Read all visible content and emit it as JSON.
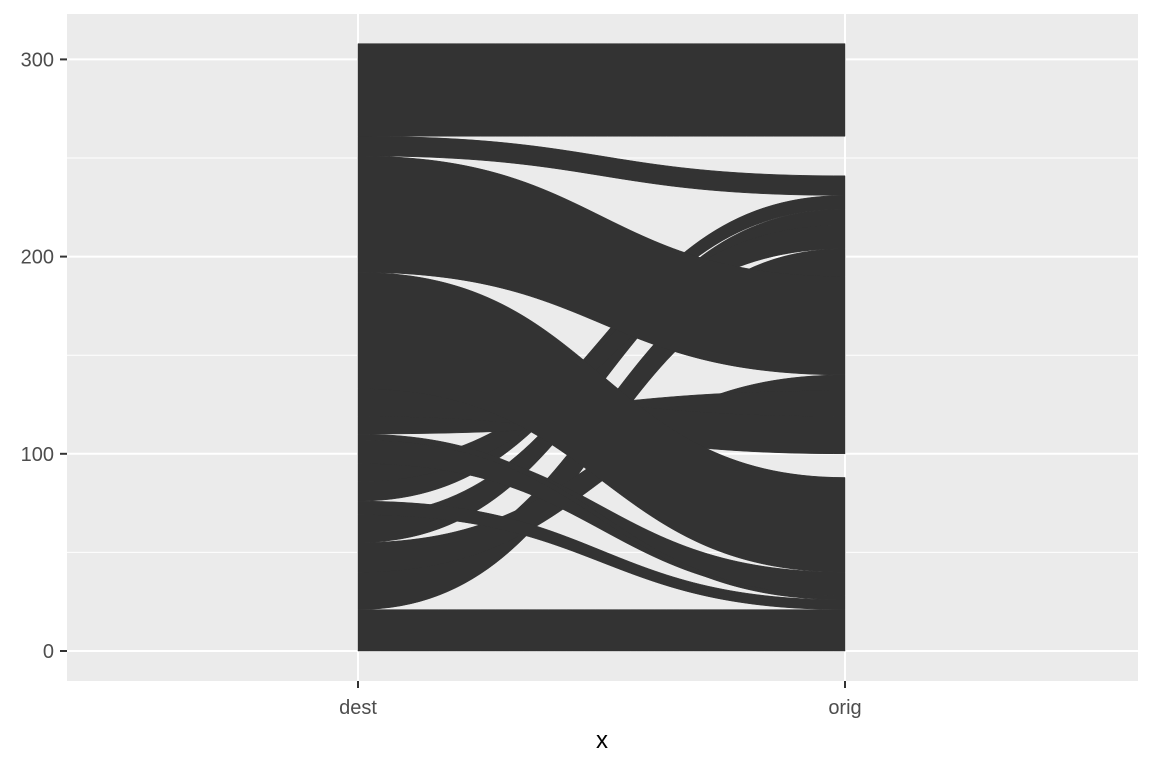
{
  "chart_data": {
    "type": "alluvial",
    "title": "",
    "xlabel": "x",
    "ylabel": "",
    "x_categories": [
      "dest",
      "orig"
    ],
    "y_ticks": [
      0,
      100,
      200,
      300
    ],
    "y_tick_labels": [
      "0",
      "100",
      "200",
      "300"
    ],
    "ylim": [
      -15,
      323
    ],
    "grid": true,
    "fill_color": "#333333",
    "panel_background": "#ebebeb",
    "stack_total": 308,
    "flows": [
      {
        "dest": [
          0,
          21
        ],
        "orig": [
          0,
          21
        ]
      },
      {
        "dest": [
          21,
          40
        ],
        "orig": [
          190,
          204
        ]
      },
      {
        "dest": [
          40,
          55
        ],
        "orig": [
          132,
          140
        ]
      },
      {
        "dest": [
          55,
          69
        ],
        "orig": [
          216,
          224
        ]
      },
      {
        "dest": [
          69,
          76
        ],
        "orig": [
          21,
          26
        ]
      },
      {
        "dest": [
          76,
          86
        ],
        "orig": [
          224,
          231
        ]
      },
      {
        "dest": [
          86,
          95
        ],
        "orig": [
          204,
          216
        ]
      },
      {
        "dest": [
          95,
          107
        ],
        "orig": [
          28,
          40
        ]
      },
      {
        "dest": [
          107,
          110
        ],
        "orig": [
          26,
          28
        ]
      },
      {
        "dest": [
          110,
          119
        ],
        "orig": [
          119,
          132
        ]
      },
      {
        "dest": [
          119,
          133
        ],
        "orig": [
          100,
          119
        ]
      },
      {
        "dest": [
          133,
          192
        ],
        "orig": [
          40,
          88
        ]
      },
      {
        "dest": [
          192,
          251
        ],
        "orig": [
          140,
          190
        ]
      },
      {
        "dest": [
          251,
          261
        ],
        "orig": [
          231,
          241
        ]
      },
      {
        "dest": [
          261,
          308
        ],
        "orig": [
          261,
          308
        ]
      }
    ]
  }
}
